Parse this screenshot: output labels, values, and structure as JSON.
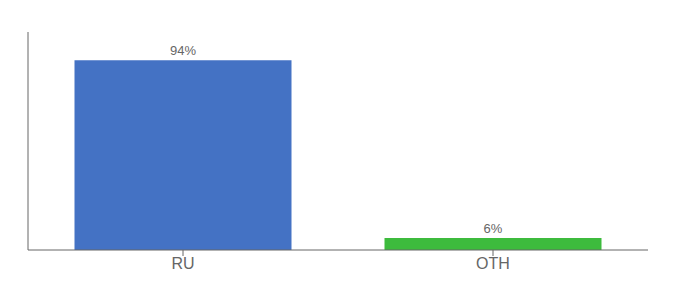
{
  "chart_data": {
    "type": "bar",
    "categories": [
      "RU",
      "OTH"
    ],
    "values": [
      94,
      6
    ],
    "value_labels": [
      "94%",
      "6%"
    ],
    "colors": [
      "#4472c4",
      "#3dbb3d"
    ],
    "ylim": [
      0,
      108
    ],
    "data_labels": true,
    "tick_labels": "x",
    "grid": false
  }
}
